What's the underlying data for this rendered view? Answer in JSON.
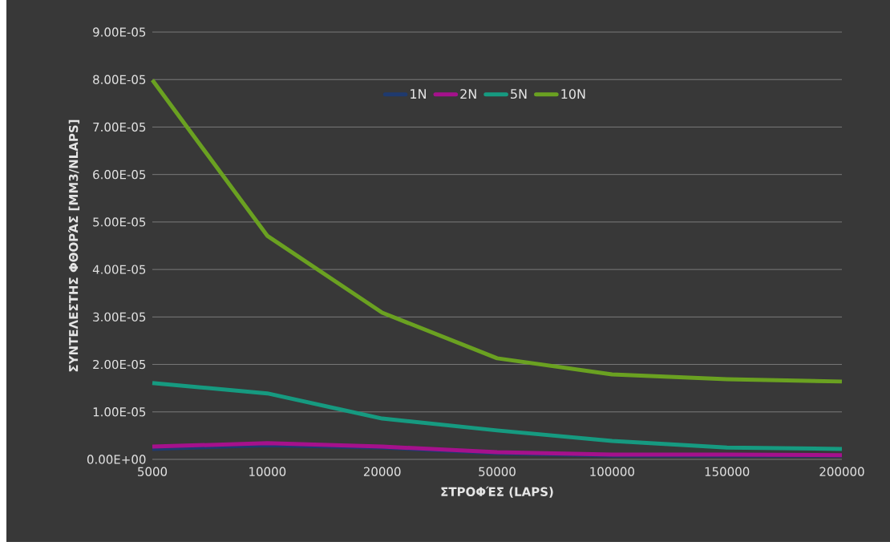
{
  "chart_data": {
    "type": "line",
    "xlabel": "ΣΤΡΟΦΈΣ (LAPS)",
    "ylabel": "ΣΥΝΤΕΛΕΣΤΗΣ ΦΘΟΡΆΣ [MM3/NLAPS]",
    "categories": [
      "5000",
      "10000",
      "20000",
      "50000",
      "100000",
      "150000",
      "200000"
    ],
    "series": [
      {
        "name": "1N",
        "color": "#1f3a6e",
        "values": [
          2.2e-06,
          3e-06,
          2.5e-06,
          1.3e-06,
          8e-07,
          8e-07,
          8e-07
        ]
      },
      {
        "name": "2N",
        "color": "#a5118c",
        "values": [
          2.7e-06,
          3.4e-06,
          2.7e-06,
          1.5e-06,
          1e-06,
          1e-06,
          9e-07
        ]
      },
      {
        "name": "5N",
        "color": "#169a80",
        "values": [
          1.61e-05,
          1.39e-05,
          8.6e-06,
          6.1e-06,
          3.9e-06,
          2.5e-06,
          2.2e-06
        ]
      },
      {
        "name": "10N",
        "color": "#6aa121",
        "values": [
          7.99e-05,
          4.71e-05,
          3.09e-05,
          2.13e-05,
          1.79e-05,
          1.69e-05,
          1.64e-05
        ]
      }
    ],
    "ylim": [
      0,
      9e-05
    ],
    "yticks": [
      {
        "value": 0,
        "label": "0.00E+00"
      },
      {
        "value": 1e-05,
        "label": "1.00E-05"
      },
      {
        "value": 2e-05,
        "label": "2.00E-05"
      },
      {
        "value": 3e-05,
        "label": "3.00E-05"
      },
      {
        "value": 4e-05,
        "label": "4.00E-05"
      },
      {
        "value": 5e-05,
        "label": "5.00E-05"
      },
      {
        "value": 6e-05,
        "label": "6.00E-05"
      },
      {
        "value": 7e-05,
        "label": "7.00E-05"
      },
      {
        "value": 8e-05,
        "label": "8.00E-05"
      },
      {
        "value": 9e-05,
        "label": "9.00E-05"
      }
    ],
    "grid": "y",
    "legend": "top",
    "marker": "none",
    "line_style": "solid"
  }
}
